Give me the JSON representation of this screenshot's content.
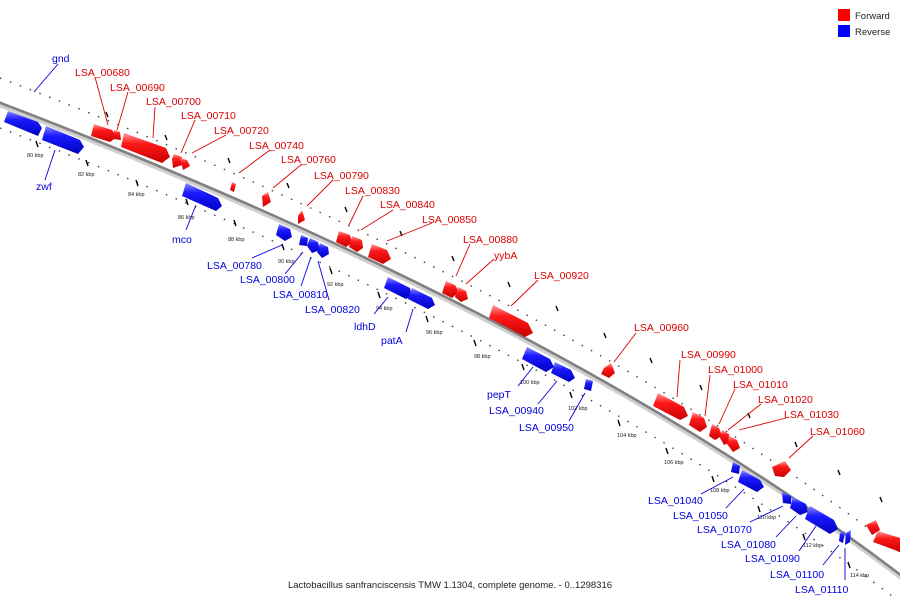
{
  "legend": {
    "forward_label": "Forward",
    "reverse_label": "Reverse",
    "forward_color": "#ff0000",
    "reverse_color": "#0000ff"
  },
  "caption": "Lactobacillus sanfranciscensis TMW 1.1304, complete genome. - 0..1298316",
  "scale_ticks": [
    "80 kbp",
    "82 kbp",
    "84 kbp",
    "86 kbp",
    "88 kbp",
    "90 kbp",
    "92 kbp",
    "94 kbp",
    "96 kbp",
    "98 kbp",
    "100 kbp",
    "102 kbp",
    "104 kbp",
    "106 kbp",
    "108 kbp",
    "110 kbp",
    "112 kbp",
    "114 kbp"
  ],
  "genes_forward": [
    "LSA_00680",
    "LSA_00690",
    "LSA_00700",
    "LSA_00710",
    "LSA_00720",
    "LSA_00740",
    "LSA_00760",
    "LSA_00790",
    "LSA_00830",
    "LSA_00840",
    "LSA_00850",
    "LSA_00880",
    "yybA",
    "LSA_00920",
    "LSA_00960",
    "LSA_00990",
    "LSA_01000",
    "LSA_01010",
    "LSA_01020",
    "LSA_01030",
    "LSA_01060"
  ],
  "genes_reverse": [
    "gnd",
    "zwf",
    "mco",
    "LSA_00780",
    "LSA_00800",
    "LSA_00810",
    "LSA_00820",
    "ldhD",
    "patA",
    "pepT",
    "LSA_00940",
    "LSA_00950",
    "LSA_01040",
    "LSA_01050",
    "LSA_01070",
    "LSA_01080",
    "LSA_01090",
    "LSA_01100",
    "LSA_01110"
  ]
}
